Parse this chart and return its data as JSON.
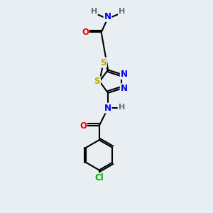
{
  "bg_color": "#e8eef2",
  "atom_colors": {
    "C": "#000000",
    "H": "#607080",
    "N": "#0000ee",
    "O": "#ee0000",
    "S": "#bbaa00",
    "Cl": "#00aa00"
  }
}
